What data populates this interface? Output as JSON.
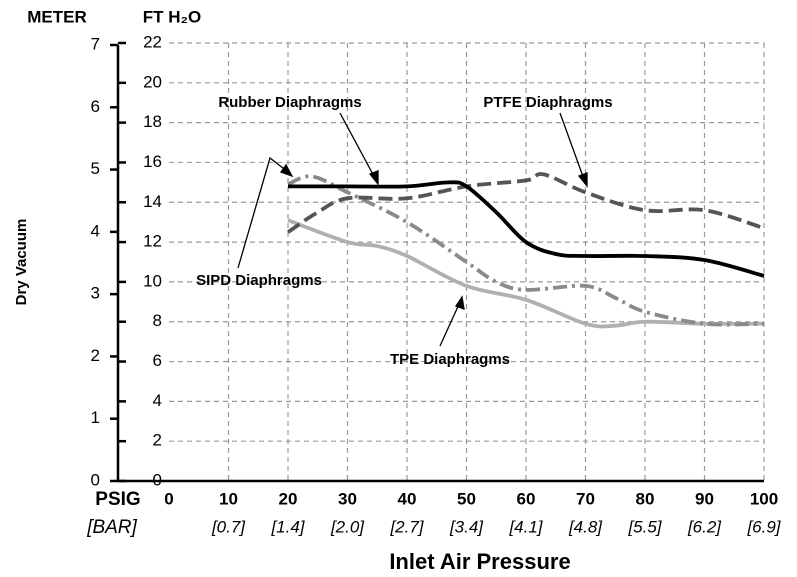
{
  "chart_data": {
    "type": "line",
    "y_axis_label": "Dry Vacuum",
    "x_axis_label": "Inlet Air Pressure",
    "x_unit_label": "PSIG",
    "x2_unit_label": "[BAR]",
    "y_unit_label": "FT H₂O",
    "y2_unit_label": "METER",
    "xlim": [
      0,
      100
    ],
    "xticks": [
      0,
      10,
      20,
      30,
      40,
      50,
      60,
      70,
      80,
      90,
      100
    ],
    "x2ticks": [
      {
        "value": 10,
        "label": "[0.7]"
      },
      {
        "value": 20,
        "label": "[1.4]"
      },
      {
        "value": 30,
        "label": "[2.0]"
      },
      {
        "value": 40,
        "label": "[2.7]"
      },
      {
        "value": 50,
        "label": "[3.4]"
      },
      {
        "value": 60,
        "label": "[4.1]"
      },
      {
        "value": 70,
        "label": "[4.8]"
      },
      {
        "value": 80,
        "label": "[5.5]"
      },
      {
        "value": 90,
        "label": "[6.2]"
      },
      {
        "value": 100,
        "label": "[6.9]"
      }
    ],
    "ylim": [
      0,
      22
    ],
    "yticks": [
      0,
      2,
      4,
      6,
      8,
      10,
      12,
      14,
      16,
      18,
      20,
      22
    ],
    "y2lim": [
      0,
      7
    ],
    "y2ticks": [
      0,
      1,
      2,
      3,
      4,
      5,
      6,
      7
    ],
    "grid": true,
    "series": [
      {
        "name": "Rubber Diaphragms",
        "color": "#000000",
        "dash": "none",
        "x": [
          20,
          30,
          40,
          47,
          50,
          55,
          60,
          65,
          70,
          80,
          90,
          100
        ],
        "values": [
          14.8,
          14.8,
          14.8,
          15.0,
          14.8,
          13.5,
          12.0,
          11.4,
          11.3,
          11.3,
          11.1,
          10.3
        ]
      },
      {
        "name": "PTFE Diaphragms",
        "color": "#555555",
        "dash": "14 6",
        "x": [
          20,
          25,
          30,
          40,
          50,
          60,
          63,
          70,
          80,
          90,
          100
        ],
        "values": [
          12.5,
          13.5,
          14.2,
          14.2,
          14.8,
          15.1,
          15.4,
          14.5,
          13.6,
          13.6,
          12.7
        ]
      },
      {
        "name": "SIPD Diaphragms",
        "color": "#8a8a8a",
        "dash": "14 5 3 5",
        "x": [
          20,
          24,
          30,
          40,
          50,
          55,
          60,
          70,
          75,
          80,
          90,
          100
        ],
        "values": [
          14.9,
          15.3,
          14.5,
          13.0,
          11.0,
          10.0,
          9.6,
          9.8,
          9.2,
          8.5,
          7.9,
          7.9
        ]
      },
      {
        "name": "TPE Diaphragms",
        "color": "#b0b0b0",
        "dash": "none",
        "x": [
          20,
          30,
          35,
          40,
          50,
          60,
          70,
          75,
          80,
          90,
          100
        ],
        "values": [
          13.1,
          12.0,
          11.8,
          11.3,
          9.8,
          9.1,
          7.9,
          7.8,
          8.0,
          7.9,
          7.9
        ]
      }
    ]
  }
}
